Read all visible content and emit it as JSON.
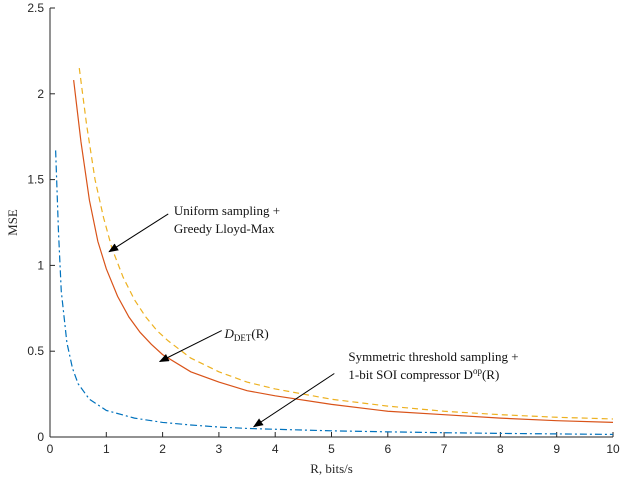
{
  "chart_data": {
    "type": "line",
    "title": "",
    "xlabel": "R,  bits/s",
    "ylabel": "MSE",
    "xlim": [
      0,
      10
    ],
    "ylim": [
      0,
      2.5
    ],
    "xticks": [
      0,
      1,
      2,
      3,
      4,
      5,
      6,
      7,
      8,
      9,
      10
    ],
    "yticks": [
      0,
      0.5,
      1,
      1.5,
      2,
      2.5
    ],
    "grid": false,
    "series": [
      {
        "style": "solid",
        "color": "#D95319",
        "points": [
          [
            0.42,
            2.08
          ],
          [
            0.55,
            1.72
          ],
          [
            0.7,
            1.38
          ],
          [
            0.85,
            1.14
          ],
          [
            1.0,
            0.98
          ],
          [
            1.2,
            0.82
          ],
          [
            1.4,
            0.7
          ],
          [
            1.6,
            0.61
          ],
          [
            1.8,
            0.54
          ],
          [
            2.0,
            0.48
          ],
          [
            2.5,
            0.38
          ],
          [
            3.0,
            0.32
          ],
          [
            3.5,
            0.27
          ],
          [
            4.0,
            0.24
          ],
          [
            5.0,
            0.19
          ],
          [
            6.0,
            0.15
          ],
          [
            7.0,
            0.13
          ],
          [
            8.0,
            0.11
          ],
          [
            9.0,
            0.095
          ],
          [
            10.0,
            0.085
          ]
        ]
      },
      {
        "style": "dashed",
        "color": "#EDB120",
        "points": [
          [
            0.52,
            2.15
          ],
          [
            0.65,
            1.82
          ],
          [
            0.8,
            1.5
          ],
          [
            0.95,
            1.28
          ],
          [
            1.1,
            1.1
          ],
          [
            1.3,
            0.93
          ],
          [
            1.5,
            0.8
          ],
          [
            1.7,
            0.7
          ],
          [
            1.9,
            0.62
          ],
          [
            2.1,
            0.56
          ],
          [
            2.5,
            0.46
          ],
          [
            3.0,
            0.38
          ],
          [
            3.5,
            0.32
          ],
          [
            4.0,
            0.28
          ],
          [
            5.0,
            0.22
          ],
          [
            6.0,
            0.18
          ],
          [
            7.0,
            0.15
          ],
          [
            8.0,
            0.13
          ],
          [
            9.0,
            0.115
          ],
          [
            10.0,
            0.105
          ]
        ]
      },
      {
        "style": "dashdot",
        "color": "#0072BD",
        "points": [
          [
            0.1,
            1.67
          ],
          [
            0.15,
            1.2
          ],
          [
            0.2,
            0.85
          ],
          [
            0.3,
            0.55
          ],
          [
            0.4,
            0.4
          ],
          [
            0.5,
            0.31
          ],
          [
            0.7,
            0.22
          ],
          [
            1.0,
            0.155
          ],
          [
            1.5,
            0.11
          ],
          [
            2.0,
            0.085
          ],
          [
            2.5,
            0.07
          ],
          [
            3.0,
            0.058
          ],
          [
            3.5,
            0.05
          ],
          [
            4.0,
            0.045
          ],
          [
            5.0,
            0.036
          ],
          [
            6.0,
            0.03
          ],
          [
            7.0,
            0.025
          ],
          [
            8.0,
            0.021
          ],
          [
            9.0,
            0.018
          ],
          [
            10.0,
            0.015
          ]
        ]
      }
    ],
    "annotations": [
      {
        "id": "uniform",
        "lines": [
          "Uniform sampling +",
          "Greedy Lloyd-Max"
        ],
        "arrow_to": [
          1.05,
          1.08
        ],
        "arrow_from": [
          2.1,
          1.3
        ],
        "text_at": [
          2.2,
          1.27
        ]
      },
      {
        "id": "ddet",
        "lines": [
          "D_DET(R)"
        ],
        "arrow_to": [
          1.95,
          0.44
        ],
        "arrow_from": [
          3.05,
          0.62
        ],
        "text_at": [
          3.1,
          0.6
        ]
      },
      {
        "id": "symmetric",
        "lines": [
          "Symmetric threshold sampling +",
          "1-bit SOI compressor D^op(R)"
        ],
        "arrow_to": [
          3.62,
          0.06
        ],
        "arrow_from": [
          5.05,
          0.37
        ],
        "text_at": [
          5.3,
          0.42
        ]
      }
    ]
  },
  "annotations_text": {
    "uniform_line1": "Uniform sampling +",
    "uniform_line2": "Greedy Lloyd-Max",
    "ddet_main": "D",
    "ddet_sub": "DET",
    "ddet_rest": "(R)",
    "sym_line1": "Symmetric threshold sampling +",
    "sym_line2_main": "1-bit SOI compressor D",
    "sym_line2_sup": "op",
    "sym_line2_rest": "(R)"
  }
}
